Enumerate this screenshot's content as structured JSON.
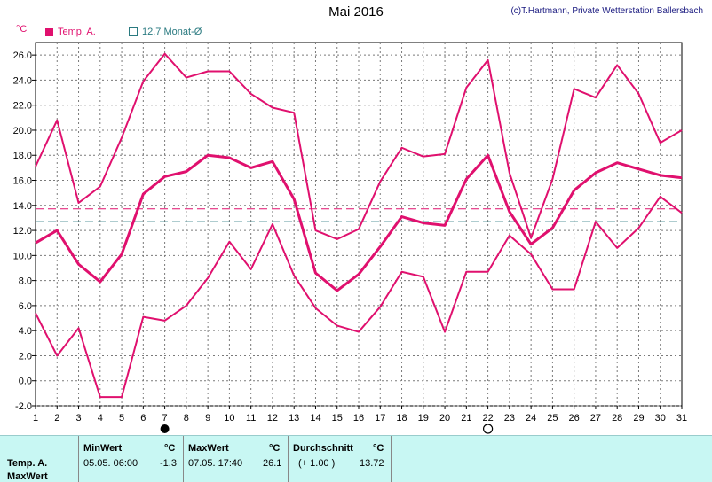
{
  "header": {
    "title": "Mai 2016",
    "credit": "(c)T.Hartmann, Private Wetterstation Ballersbach",
    "unit": "°C"
  },
  "legend": {
    "temp_label": "Temp. A.",
    "monthly_label": "12.7 Monat-Ø"
  },
  "colors": {
    "series": "#e0106e",
    "monthly_avg": "#2a7a80",
    "grid": "#888888",
    "footer_bg": "#c8f7f3"
  },
  "chart_data": {
    "type": "line",
    "title": "Mai 2016",
    "ylabel": "°C",
    "ylim": [
      -2,
      27
    ],
    "x": [
      1,
      2,
      3,
      4,
      5,
      6,
      7,
      8,
      9,
      10,
      11,
      12,
      13,
      14,
      15,
      16,
      17,
      18,
      19,
      20,
      21,
      22,
      23,
      24,
      25,
      26,
      27,
      28,
      29,
      30,
      31
    ],
    "yticks": [
      "-2.0",
      "0.0",
      "2.0",
      "4.0",
      "6.0",
      "8.0",
      "10.0",
      "12.0",
      "14.0",
      "16.0",
      "18.0",
      "20.0",
      "22.0",
      "24.0",
      "26.0"
    ],
    "ytick_values": [
      -2,
      0,
      2,
      4,
      6,
      8,
      10,
      12,
      14,
      16,
      18,
      20,
      22,
      24,
      26
    ],
    "series": [
      {
        "name": "Temp. A. max",
        "values": [
          17.1,
          20.8,
          14.2,
          15.5,
          19.4,
          23.9,
          26.1,
          24.2,
          24.7,
          24.7,
          22.9,
          21.8,
          21.4,
          12.0,
          11.3,
          12.1,
          15.9,
          18.6,
          17.9,
          18.1,
          23.4,
          25.6,
          16.6,
          11.4,
          16.1,
          23.3,
          22.6,
          25.2,
          22.9,
          19.0,
          20.0
        ]
      },
      {
        "name": "Temp. A.",
        "values": [
          11.0,
          12.0,
          9.3,
          7.9,
          10.1,
          14.9,
          16.3,
          16.7,
          18.0,
          17.8,
          17.0,
          17.5,
          14.5,
          8.6,
          7.2,
          8.5,
          10.7,
          13.1,
          12.6,
          12.4,
          16.1,
          18.0,
          13.5,
          10.9,
          12.2,
          15.2,
          16.6,
          17.4,
          16.9,
          16.4,
          16.2
        ]
      },
      {
        "name": "Temp. A. min",
        "values": [
          5.4,
          2.0,
          4.2,
          -1.3,
          -1.3,
          5.1,
          4.8,
          6.0,
          8.2,
          11.1,
          8.9,
          12.5,
          8.4,
          5.8,
          4.4,
          3.9,
          5.9,
          8.7,
          8.3,
          3.9,
          8.7,
          8.7,
          11.6,
          10.1,
          7.3,
          7.3,
          12.7,
          10.6,
          12.2,
          14.7,
          13.4
        ]
      }
    ],
    "reference_lines": [
      {
        "label": "Durchschnitt",
        "value": 13.72,
        "style": "dashed",
        "color": "#e0106e"
      },
      {
        "label": "12.7 Monat-Ø",
        "value": 12.7,
        "style": "dashed",
        "color": "#2a7a80"
      }
    ],
    "markers": [
      {
        "x": 7,
        "symbol": "new-moon"
      },
      {
        "x": 22,
        "symbol": "full-moon"
      }
    ],
    "grid": true
  },
  "footer": {
    "row_label1": "Temp. A.",
    "row_label2": "MaxWert",
    "min_head": "MinWert",
    "min_unit": "°C",
    "min_when": "05.05.  06:00",
    "min_value": "-1.3",
    "max_head": "MaxWert",
    "max_unit": "°C",
    "max_when": "07.05.  17:40",
    "max_value": "26.1",
    "avg_head": "Durchschnitt",
    "avg_unit": "°C",
    "avg_diff": "(+ 1.00 )",
    "avg_value": "13.72"
  }
}
